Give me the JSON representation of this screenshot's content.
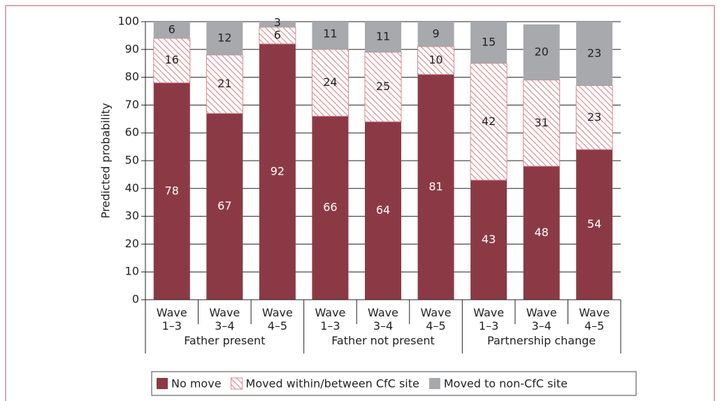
{
  "chart_data": {
    "type": "stacked_bar",
    "ylabel": "Predicted probability",
    "groups": [
      {
        "name": "Father present",
        "categories": [
          "Wave 1–3",
          "Wave 3–4",
          "Wave 4–5"
        ]
      },
      {
        "name": "Father not present",
        "categories": [
          "Wave 1–3",
          "Wave 3–4",
          "Wave 4–5"
        ]
      },
      {
        "name": "Partnership change",
        "categories": [
          "Wave 1–3",
          "Wave 3–4",
          "Wave 4–5"
        ]
      }
    ],
    "series": [
      {
        "name": "No move",
        "color": "#8b3a45",
        "values": [
          78,
          67,
          92,
          66,
          64,
          81,
          43,
          48,
          54
        ]
      },
      {
        "name": "Moved within/between CfC site",
        "color": "#d9848c",
        "hatch": true,
        "values": [
          16,
          21,
          6,
          24,
          25,
          10,
          42,
          31,
          23
        ]
      },
      {
        "name": "Moved to non-CfC site",
        "color": "#a7a9ac",
        "values": [
          6,
          12,
          3,
          11,
          11,
          9,
          15,
          20,
          23
        ]
      }
    ],
    "ylim": [
      0,
      100
    ],
    "yticks": [
      0,
      10,
      20,
      30,
      40,
      50,
      60,
      70,
      80,
      90,
      100
    ],
    "grid": true
  }
}
